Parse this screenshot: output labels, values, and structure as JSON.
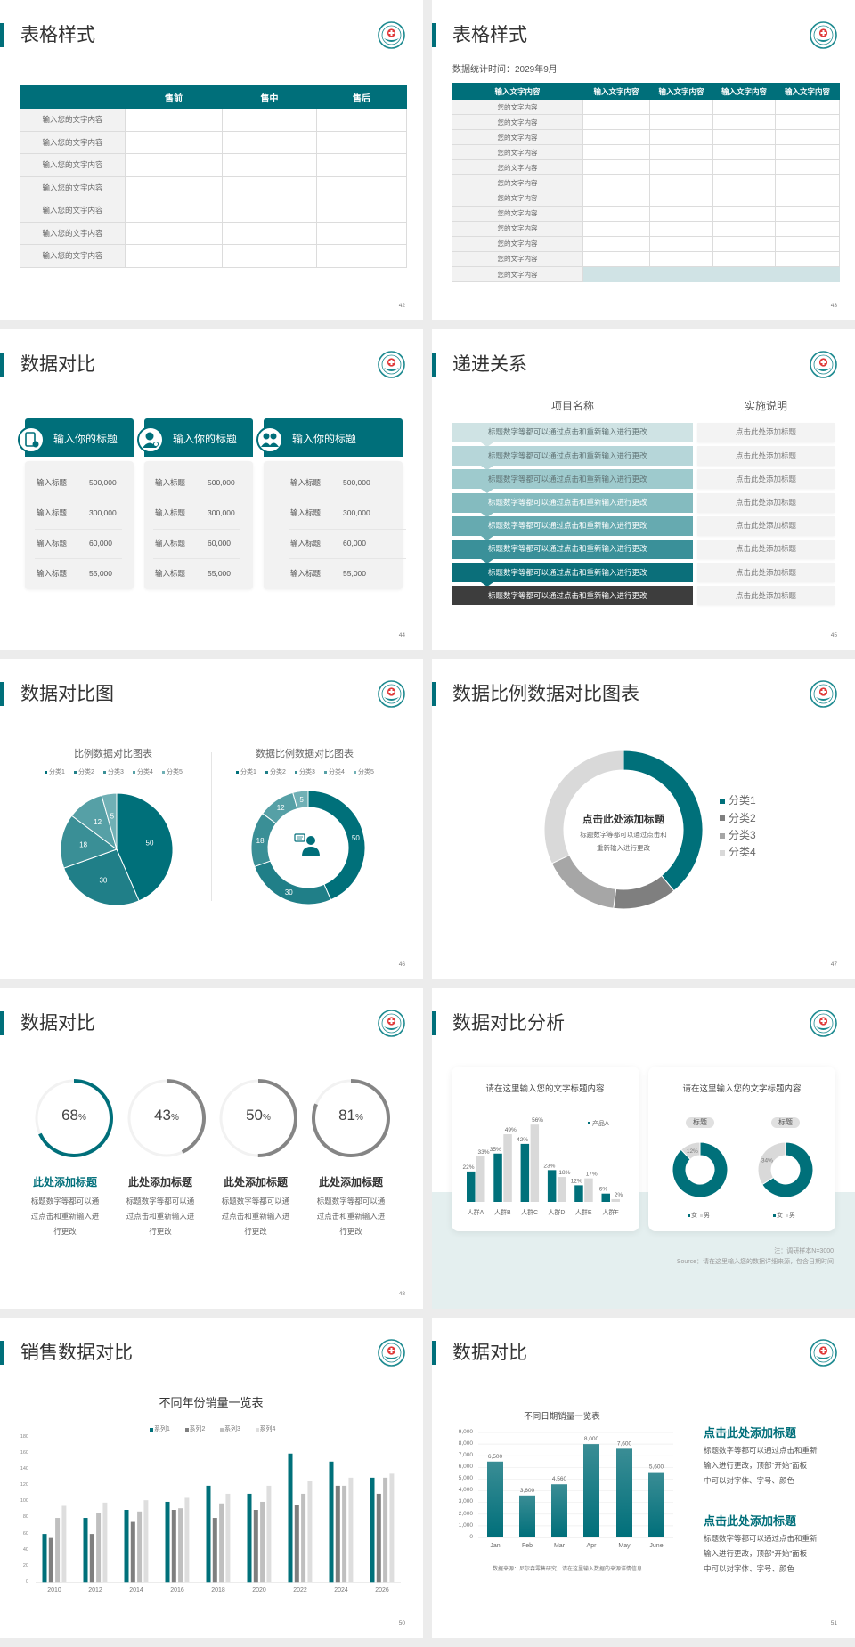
{
  "colors": {
    "accent": "#006f7a",
    "accent_light": "#d0e3e5",
    "gray_dark": "#7f7f7f",
    "gray_mid": "#a6a6a6",
    "gray_light": "#d9d9d9",
    "band": "#e4efef"
  },
  "slides": [
    {
      "page": "42",
      "title": "表格样式",
      "table": {
        "headers": [
          "",
          "售前",
          "售中",
          "售后"
        ],
        "rows": [
          "输入您的文字内容",
          "输入您的文字内容",
          "输入您的文字内容",
          "输入您的文字内容",
          "输入您的文字内容",
          "输入您的文字内容",
          "输入您的文字内容"
        ]
      }
    },
    {
      "page": "43",
      "title": "表格样式",
      "subtitle": "数据统计时间：2029年9月",
      "table": {
        "headers": [
          "输入文字内容",
          "输入文字内容",
          "输入文字内容",
          "输入文字内容",
          "输入文字内容"
        ],
        "rows": [
          "您的文字内容",
          "您的文字内容",
          "您的文字内容",
          "您的文字内容",
          "您的文字内容",
          "您的文字内容",
          "您的文字内容",
          "您的文字内容",
          "您的文字内容",
          "您的文字内容",
          "您的文字内容",
          "您的文字内容"
        ]
      }
    },
    {
      "page": "44",
      "title": "数据对比",
      "cards": [
        {
          "icon": "phone-user-icon",
          "title": "输入你的标题",
          "rows": [
            {
              "label": "输入标题",
              "value": "500,000"
            },
            {
              "label": "输入标题",
              "value": "300,000"
            },
            {
              "label": "输入标题",
              "value": "60,000"
            },
            {
              "label": "输入标题",
              "value": "55,000"
            }
          ]
        },
        {
          "icon": "user-icon",
          "title": "输入你的标题",
          "rows": [
            {
              "label": "输入标题",
              "value": "500,000"
            },
            {
              "label": "输入标题",
              "value": "300,000"
            },
            {
              "label": "输入标题",
              "value": "60,000"
            },
            {
              "label": "输入标题",
              "value": "55,000"
            }
          ]
        },
        {
          "icon": "group-icon",
          "title": "输入你的标题",
          "rows": [
            {
              "label": "输入标题",
              "value": "500,000"
            },
            {
              "label": "输入标题",
              "value": "300,000"
            },
            {
              "label": "输入标题",
              "value": "60,000"
            },
            {
              "label": "输入标题",
              "value": "55,000"
            }
          ]
        }
      ]
    },
    {
      "page": "45",
      "title": "递进关系",
      "headers": [
        "项目名称",
        "实施说明"
      ],
      "rows": [
        {
          "item": "标题数字等都可以通过点击和重新输入进行更改",
          "note": "点击此处添加标题",
          "color": "#cfe3e4"
        },
        {
          "item": "标题数字等都可以通过点击和重新输入进行更改",
          "note": "点击此处添加标题",
          "color": "#b6d6d9"
        },
        {
          "item": "标题数字等都可以通过点击和重新输入进行更改",
          "note": "点击此处添加标题",
          "color": "#9ecacd"
        },
        {
          "item": "标题数字等都可以通过点击和重新输入进行更改",
          "note": "点击此处添加标题",
          "color": "#84bbbf"
        },
        {
          "item": "标题数字等都可以通过点击和重新输入进行更改",
          "note": "点击此处添加标题",
          "color": "#66aab0"
        },
        {
          "item": "标题数字等都可以通过点击和重新输入进行更改",
          "note": "点击此处添加标题",
          "color": "#3a9099"
        },
        {
          "item": "标题数字等都可以通过点击和重新输入进行更改",
          "note": "点击此处添加标题",
          "color": "#0b6f7a"
        },
        {
          "item": "标题数字等都可以通过点击和重新输入进行更改",
          "note": "点击此处添加标题",
          "color": "#3d3d3d"
        }
      ]
    },
    {
      "page": "46",
      "title": "数据对比图",
      "center_icon": "customer-service-person-icon"
    },
    {
      "page": "47",
      "title": "数据比例数据对比图表",
      "center_title": "点击此处添加标题",
      "center_lines": [
        "标题数字等都可以通过点击和",
        "重新输入进行更改"
      ]
    },
    {
      "page": "48",
      "title": "数据对比",
      "items": [
        {
          "value": "68",
          "unit": "%",
          "percent": 68,
          "title": "此处添加标题",
          "lines": [
            "标题数字等都可以通",
            "过点击和重新输入进",
            "行更改"
          ]
        },
        {
          "value": "43",
          "unit": "%",
          "percent": 43,
          "title": "此处添加标题",
          "lines": [
            "标题数字等都可以通",
            "过点击和重新输入进",
            "行更改"
          ]
        },
        {
          "value": "50",
          "unit": "%",
          "percent": 50,
          "title": "此处添加标题",
          "lines": [
            "标题数字等都可以通",
            "过点击和重新输入进",
            "行更改"
          ]
        },
        {
          "value": "81",
          "unit": "%",
          "percent": 81,
          "title": "此处添加标题",
          "lines": [
            "标题数字等都可以通",
            "过点击和重新输入进",
            "行更改"
          ]
        }
      ]
    },
    {
      "page": "49",
      "title": "数据对比分析",
      "card_titles": [
        "请在这里输入您的文字标题内容",
        "请在这里输入您的文字标题内容"
      ],
      "note": "注：调研样本N=3000",
      "source": "Source：请在这里输入您的数据详细来源，包含日期时间"
    },
    {
      "page": "50",
      "title": "销售数据对比"
    },
    {
      "page": "51",
      "title": "数据对比",
      "texts": [
        {
          "heading": "点击此处添加标题",
          "lines": [
            "标题数字等都可以通过点击和重新",
            "输入进行更改，顶部“开始”面板",
            "中可以对字体、字号、颜色"
          ]
        },
        {
          "heading": "点击此处添加标题",
          "lines": [
            "标题数字等都可以通过点击和重新",
            "输入进行更改，顶部“开始”面板",
            "中可以对字体、字号、颜色"
          ]
        }
      ]
    }
  ],
  "chart_data": [
    {
      "type": "pie",
      "title": "比例数据对比图表",
      "categories": [
        "分类1",
        "分类2",
        "分类3",
        "分类4",
        "分类5"
      ],
      "values": [
        50,
        30,
        18,
        12,
        5
      ],
      "colors": [
        "#00707a",
        "#207f88",
        "#3a8f96",
        "#56a0a6",
        "#70b0b5"
      ],
      "legend": "top"
    },
    {
      "type": "pie",
      "donut": true,
      "title": "数据比例数据对比图表",
      "categories": [
        "分类1",
        "分类2",
        "分类3",
        "分类4",
        "分类5"
      ],
      "values": [
        50,
        30,
        18,
        12,
        5
      ],
      "colors": [
        "#00707a",
        "#207f88",
        "#3a8f96",
        "#56a0a6",
        "#70b0b5"
      ],
      "legend": "top"
    },
    {
      "type": "pie",
      "donut": true,
      "categories": [
        "分类1",
        "分类2",
        "分类3",
        "分类4"
      ],
      "values": [
        39,
        13,
        16,
        32
      ],
      "colors": [
        "#00707a",
        "#7f7f7f",
        "#a6a6a6",
        "#d9d9d9"
      ],
      "legend": "right"
    },
    {
      "type": "bar",
      "categories": [
        "人群A",
        "人群B",
        "人群C",
        "人群D",
        "人群E",
        "人群F"
      ],
      "series": [
        {
          "name": "产品A",
          "values": [
            22,
            35,
            42,
            23,
            12,
            6
          ],
          "labels": [
            "22%",
            "35%",
            "42%",
            "23%",
            "12%",
            "6%"
          ],
          "color": "#00707a"
        },
        {
          "values": [
            33,
            49,
            56,
            18,
            17,
            2
          ],
          "labels": [
            "33%",
            "49%",
            "56%",
            "18%",
            "17%",
            "2%"
          ],
          "color": "#d9d9d9"
        }
      ],
      "legend": "top-right"
    },
    {
      "type": "pie",
      "donut": true,
      "label": "标题",
      "categories": [
        "女",
        "男"
      ],
      "values": [
        88,
        12
      ],
      "value_labels": [
        "",
        "12%"
      ],
      "colors": [
        "#00707a",
        "#d9d9d9"
      ],
      "legend": "bottom"
    },
    {
      "type": "pie",
      "donut": true,
      "label": "标题",
      "categories": [
        "女",
        "男"
      ],
      "values": [
        66,
        34
      ],
      "value_labels": [
        "",
        "34%"
      ],
      "colors": [
        "#00707a",
        "#d9d9d9"
      ],
      "legend": "bottom"
    },
    {
      "type": "bar",
      "title": "不同年份销量一览表",
      "categories": [
        "2010",
        "2012",
        "2014",
        "2016",
        "2018",
        "2020",
        "2022",
        "2024",
        "2026"
      ],
      "series": [
        {
          "name": "系列1",
          "values": [
            60,
            80,
            90,
            100,
            120,
            110,
            160,
            150,
            130
          ],
          "color": "#00707a"
        },
        {
          "name": "系列2",
          "values": [
            55,
            60,
            75,
            90,
            80,
            90,
            96,
            120,
            110
          ],
          "color": "#7f7f7f"
        },
        {
          "name": "系列3",
          "values": [
            80,
            86,
            88,
            92,
            98,
            100,
            110,
            120,
            130
          ],
          "color": "#bfbfbf"
        },
        {
          "name": "系列4",
          "values": [
            95,
            99,
            102,
            105,
            110,
            120,
            126,
            130,
            135
          ],
          "color": "#dedede"
        }
      ],
      "ylim": [
        0,
        180
      ],
      "yticks": [
        0,
        20,
        40,
        60,
        80,
        100,
        120,
        140,
        160,
        180
      ],
      "legend": "top",
      "grid": false
    },
    {
      "type": "bar",
      "title": "不同日期销量一览表",
      "categories": [
        "Jan",
        "Feb",
        "Mar",
        "Apr",
        "May",
        "June"
      ],
      "values": [
        6500,
        3600,
        4560,
        8000,
        7600,
        5600
      ],
      "value_labels": [
        "6,500",
        "3,600",
        "4,560",
        "8,000",
        "7,600",
        "5,600"
      ],
      "ylim": [
        0,
        9000
      ],
      "yticks": [
        "0",
        "1,000",
        "2,000",
        "3,000",
        "4,000",
        "5,000",
        "6,000",
        "7,000",
        "8,000",
        "9,000"
      ],
      "grid": true,
      "source": "数据来源：尼尔森零售研究，请在这里输入数据的来源详情信息"
    }
  ]
}
